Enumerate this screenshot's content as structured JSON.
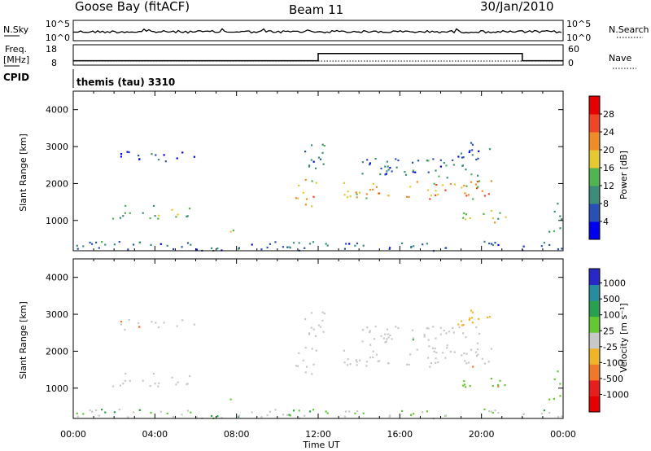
{
  "header": {
    "station": "Goose Bay (fitACF)",
    "beam": "Beam 11",
    "date": "30/Jan/2010"
  },
  "top_panels": {
    "nsky_label": "N.Sky",
    "nsearch_label": "N.Search",
    "noise_ticks": [
      "10^5",
      "10^0"
    ],
    "freq_label_1": "Freq.",
    "freq_label_2": "[MHz]",
    "freq_ticks": [
      "18",
      "8"
    ],
    "nave_label": "Nave",
    "nave_ticks": [
      "60",
      "0"
    ],
    "cpid_label": "CPID",
    "cpid_value": "themis (tau) 3310"
  },
  "axes": {
    "ylabel": "Slant Range [km]",
    "xlabel": "Time UT",
    "yticks": [
      "1000",
      "2000",
      "3000",
      "4000"
    ],
    "xticks": [
      "00:00",
      "04:00",
      "08:00",
      "12:00",
      "16:00",
      "20:00",
      "00:00"
    ]
  },
  "power_colorbar": {
    "label": "Power [dB]",
    "ticks": [
      "4",
      "8",
      "12",
      "16",
      "20",
      "24",
      "28"
    ],
    "colors": [
      "#0000f0",
      "#2850b8",
      "#3c8c7a",
      "#50b450",
      "#e6c832",
      "#f08c28",
      "#f04628",
      "#e60000"
    ]
  },
  "velocity_colorbar": {
    "label": "Velocity [m s⁻¹]",
    "ticks": [
      "1000",
      "500",
      "100",
      "25",
      "-25",
      "-100",
      "-500",
      "-1000"
    ],
    "colors": [
      "#2828c8",
      "#288ca0",
      "#28a050",
      "#64c832",
      "#c8c8c8",
      "#f0b428",
      "#f07828",
      "#e61e1e",
      "#e60000"
    ]
  },
  "chart_data": {
    "type": "heatmap",
    "title": "Goose Bay (fitACF)",
    "xlabel": "Time UT",
    "ylabel": "Slant Range [km]",
    "xlim_hours": [
      0,
      24
    ],
    "ylim_km": [
      180,
      4500
    ],
    "frequency_mhz_segments": [
      {
        "start_h": 0,
        "end_h": 12,
        "value": 10
      },
      {
        "start_h": 12,
        "end_h": 22,
        "value": 14
      },
      {
        "start_h": 22,
        "end_h": 24,
        "value": 10
      }
    ],
    "scatter_regions": [
      {
        "t0": 0.0,
        "t1": 24.0,
        "r0": 200,
        "r1": 450,
        "power_db": 8,
        "velocity": "ground"
      },
      {
        "t0": 1.8,
        "t1": 5.8,
        "r0": 1050,
        "r1": 1450,
        "power_db": 12,
        "velocity": "-25..25"
      },
      {
        "t0": 2.2,
        "t1": 6.2,
        "r0": 2600,
        "r1": 2900,
        "power_db": 6,
        "velocity": "-25..25"
      },
      {
        "t0": 7.3,
        "t1": 8.0,
        "r0": 700,
        "r1": 850,
        "power_db": 16,
        "velocity": "25..100"
      },
      {
        "t0": 10.8,
        "t1": 11.9,
        "r0": 1400,
        "r1": 2200,
        "power_db": 20,
        "velocity": "-25..25"
      },
      {
        "t0": 11.2,
        "t1": 12.3,
        "r0": 2400,
        "r1": 3100,
        "power_db": 8,
        "velocity": "-25..25"
      },
      {
        "t0": 13.2,
        "t1": 20.5,
        "r0": 1600,
        "r1": 2100,
        "power_db": 20,
        "velocity": "-25..25"
      },
      {
        "t0": 14.0,
        "t1": 20.3,
        "r0": 2100,
        "r1": 2700,
        "power_db": 8,
        "velocity": "-25..25"
      },
      {
        "t0": 18.8,
        "t1": 20.5,
        "r0": 2700,
        "r1": 3200,
        "power_db": 6,
        "velocity": "-100..-25"
      },
      {
        "t0": 19.0,
        "t1": 21.5,
        "r0": 950,
        "r1": 1300,
        "power_db": 16,
        "velocity": "25..100"
      },
      {
        "t0": 23.2,
        "t1": 24.0,
        "r0": 700,
        "r1": 1500,
        "power_db": 12,
        "velocity": "25..100"
      }
    ]
  }
}
